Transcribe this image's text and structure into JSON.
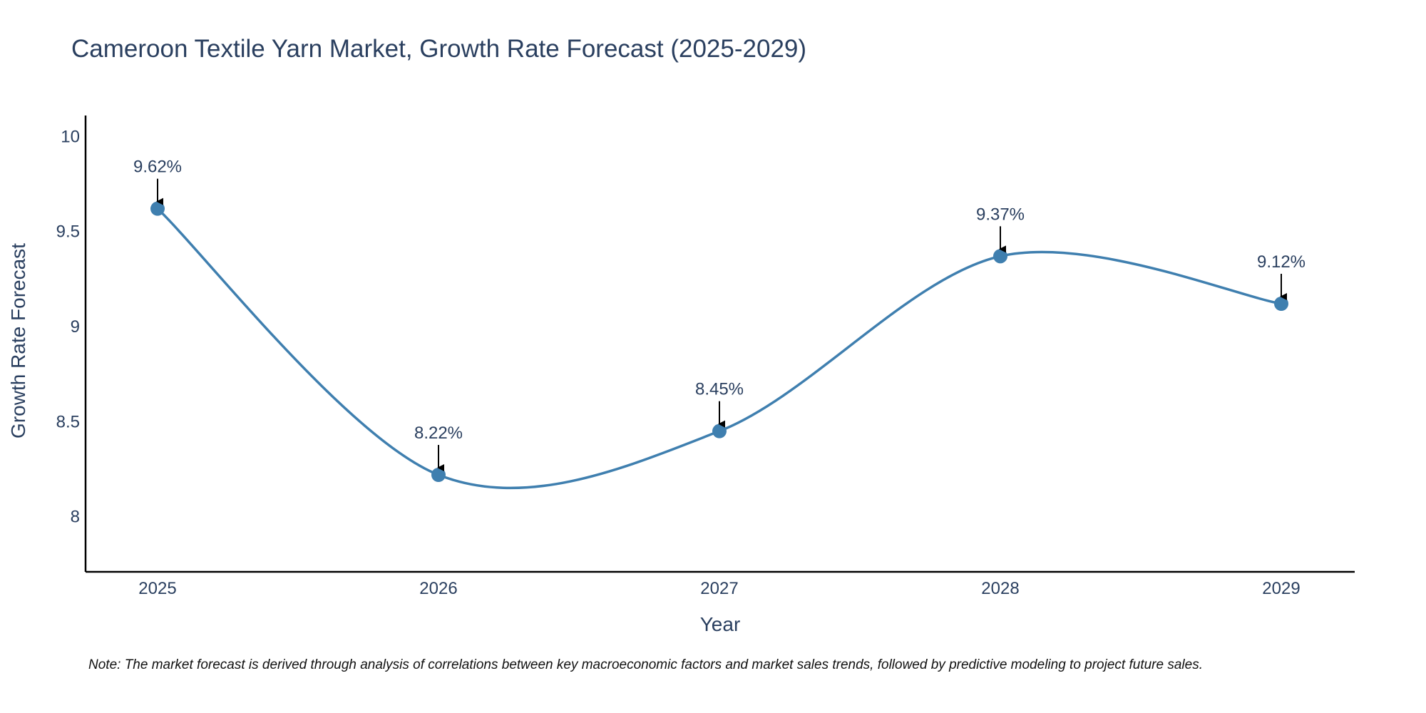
{
  "chart_data": {
    "type": "line",
    "title": "Cameroon Textile Yarn Market, Growth Rate Forecast (2025-2029)",
    "xlabel": "Year",
    "ylabel": "Growth Rate Forecast",
    "categories": [
      "2025",
      "2026",
      "2027",
      "2028",
      "2029"
    ],
    "series": [
      {
        "name": "Growth Rate Forecast",
        "values": [
          9.62,
          8.22,
          8.45,
          9.37,
          9.12
        ],
        "labels": [
          "9.62%",
          "8.22%",
          "8.45%",
          "9.37%",
          "9.12%"
        ],
        "color": "#3f7faf"
      }
    ],
    "ylim": [
      7.71,
      10.11
    ],
    "yticks": [
      8,
      8.5,
      9,
      9.5,
      10
    ],
    "ytick_labels": [
      "8",
      "8.5",
      "9",
      "9.5",
      "10"
    ],
    "grid": false,
    "line_shape": "spline"
  },
  "note": "Note: The market forecast is derived through analysis of correlations between key macroeconomic factors and market sales trends, followed by predictive modeling to project future sales."
}
